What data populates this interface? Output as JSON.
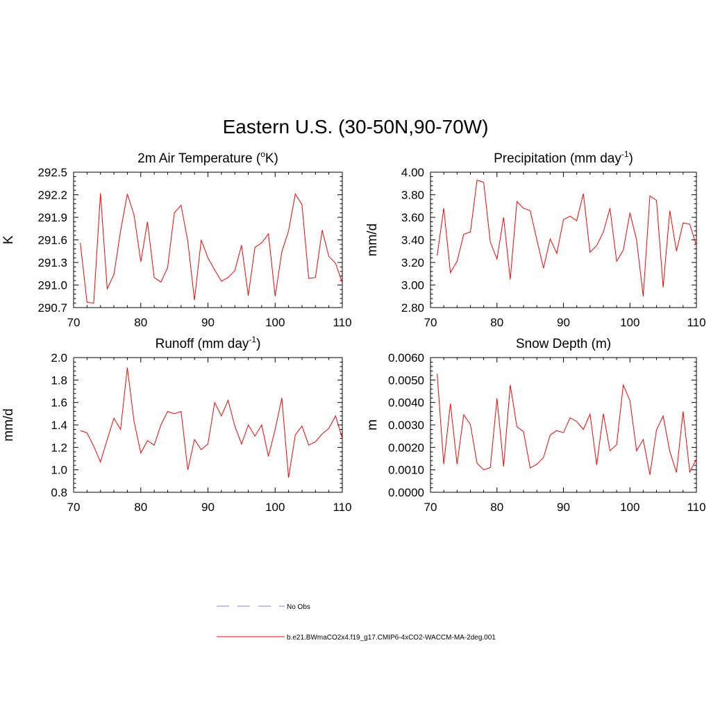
{
  "main_title": "Eastern U.S. (30-50N,90-70W)",
  "series_color": "#ff0000",
  "obs_color": "#9999dd",
  "legend": {
    "obs_label": "No Obs",
    "model_label": "b.e21.BWmaCO2x4.f19_g17.CMIP6-4xCO2-WACCM-MA-2deg.001"
  },
  "chart_data": [
    {
      "type": "line",
      "title_main": "2m Air Temperature (",
      "title_sup": "o",
      "title_tail": "K)",
      "ylabel": "K",
      "xlim": [
        70,
        110
      ],
      "ylim": [
        290.7,
        292.5
      ],
      "xticks": [
        "70",
        "80",
        "90",
        "100",
        "110"
      ],
      "xtick_values": [
        70,
        80,
        90,
        100,
        110
      ],
      "yticks": [
        "290.7",
        "291.0",
        "291.3",
        "291.6",
        "291.9",
        "292.2",
        "292.5"
      ],
      "ytick_values": [
        290.7,
        291.0,
        291.3,
        291.6,
        291.9,
        292.2,
        292.5
      ],
      "x": [
        71,
        72,
        73,
        74,
        75,
        76,
        77,
        78,
        79,
        80,
        81,
        82,
        83,
        84,
        85,
        86,
        87,
        88,
        89,
        90,
        91,
        92,
        93,
        94,
        95,
        96,
        97,
        98,
        99,
        100,
        101,
        102,
        103,
        104,
        105,
        106,
        107,
        108,
        109,
        110
      ],
      "values": [
        291.56,
        290.77,
        290.76,
        292.22,
        290.95,
        291.14,
        291.72,
        292.21,
        291.93,
        291.31,
        291.84,
        291.1,
        291.04,
        291.23,
        291.96,
        292.06,
        291.58,
        290.8,
        291.6,
        291.36,
        291.2,
        291.05,
        291.1,
        291.19,
        291.53,
        290.86,
        291.5,
        291.56,
        291.68,
        290.85,
        291.44,
        291.72,
        292.21,
        292.07,
        291.09,
        291.1,
        291.73,
        291.38,
        291.29,
        291.03
      ]
    },
    {
      "type": "line",
      "title_main": "Precipitation (mm day",
      "title_sup": "-1",
      "title_tail": ")",
      "ylabel": "mm/d",
      "xlim": [
        70,
        110
      ],
      "ylim": [
        2.8,
        4.0
      ],
      "xticks": [
        "70",
        "80",
        "90",
        "100",
        "110"
      ],
      "xtick_values": [
        70,
        80,
        90,
        100,
        110
      ],
      "yticks": [
        "2.80",
        "3.00",
        "3.20",
        "3.40",
        "3.60",
        "3.80",
        "4.00"
      ],
      "ytick_values": [
        2.8,
        3.0,
        3.2,
        3.4,
        3.6,
        3.8,
        4.0
      ],
      "x": [
        71,
        72,
        73,
        74,
        75,
        76,
        77,
        78,
        79,
        80,
        81,
        82,
        83,
        84,
        85,
        86,
        87,
        88,
        89,
        90,
        91,
        92,
        93,
        94,
        95,
        96,
        97,
        98,
        99,
        100,
        101,
        102,
        103,
        104,
        105,
        106,
        107,
        108,
        109,
        110
      ],
      "values": [
        3.26,
        3.68,
        3.11,
        3.21,
        3.45,
        3.47,
        3.93,
        3.91,
        3.38,
        3.23,
        3.6,
        3.05,
        3.74,
        3.68,
        3.66,
        3.4,
        3.15,
        3.41,
        3.28,
        3.58,
        3.61,
        3.57,
        3.81,
        3.29,
        3.35,
        3.47,
        3.68,
        3.21,
        3.31,
        3.64,
        3.4,
        2.9,
        3.79,
        3.75,
        2.98,
        3.66,
        3.3,
        3.55,
        3.54,
        3.35
      ]
    },
    {
      "type": "line",
      "title_main": "Runoff (mm day",
      "title_sup": "-1",
      "title_tail": ")",
      "ylabel": "mm/d",
      "xlim": [
        70,
        110
      ],
      "ylim": [
        0.8,
        2.0
      ],
      "xticks": [
        "70",
        "80",
        "90",
        "100",
        "110"
      ],
      "xtick_values": [
        70,
        80,
        90,
        100,
        110
      ],
      "yticks": [
        "0.8",
        "1.0",
        "1.2",
        "1.4",
        "1.6",
        "1.8",
        "2.0"
      ],
      "ytick_values": [
        0.8,
        1.0,
        1.2,
        1.4,
        1.6,
        1.8,
        2.0
      ],
      "x": [
        71,
        72,
        73,
        74,
        75,
        76,
        77,
        78,
        79,
        80,
        81,
        82,
        83,
        84,
        85,
        86,
        87,
        88,
        89,
        90,
        91,
        92,
        93,
        94,
        95,
        96,
        97,
        98,
        99,
        100,
        101,
        102,
        103,
        104,
        105,
        106,
        107,
        108,
        109,
        110
      ],
      "values": [
        1.35,
        1.33,
        1.21,
        1.07,
        1.27,
        1.46,
        1.36,
        1.91,
        1.43,
        1.15,
        1.26,
        1.22,
        1.4,
        1.52,
        1.5,
        1.52,
        1.0,
        1.27,
        1.18,
        1.23,
        1.6,
        1.48,
        1.62,
        1.39,
        1.23,
        1.4,
        1.3,
        1.4,
        1.12,
        1.36,
        1.64,
        0.93,
        1.31,
        1.39,
        1.22,
        1.25,
        1.32,
        1.37,
        1.48,
        1.28
      ]
    },
    {
      "type": "line",
      "title_main": "Snow Depth (m)",
      "title_sup": "",
      "title_tail": "",
      "ylabel": "m",
      "xlim": [
        70,
        110
      ],
      "ylim": [
        0.0,
        0.006
      ],
      "xticks": [
        "70",
        "80",
        "90",
        "100",
        "110"
      ],
      "xtick_values": [
        70,
        80,
        90,
        100,
        110
      ],
      "yticks": [
        "0.0000",
        "0.0010",
        "0.0020",
        "0.0030",
        "0.0040",
        "0.0050",
        "0.0060"
      ],
      "ytick_values": [
        0.0,
        0.001,
        0.002,
        0.003,
        0.004,
        0.005,
        0.006
      ],
      "x": [
        71,
        72,
        73,
        74,
        75,
        76,
        77,
        78,
        79,
        80,
        81,
        82,
        83,
        84,
        85,
        86,
        87,
        88,
        89,
        90,
        91,
        92,
        93,
        94,
        95,
        96,
        97,
        98,
        99,
        100,
        101,
        102,
        103,
        104,
        105,
        106,
        107,
        108,
        109,
        110
      ],
      "values": [
        0.00528,
        0.00125,
        0.00395,
        0.00125,
        0.00345,
        0.00302,
        0.0013,
        0.001,
        0.0011,
        0.00418,
        0.00115,
        0.00478,
        0.00292,
        0.0027,
        0.00108,
        0.00125,
        0.00155,
        0.00255,
        0.00275,
        0.00265,
        0.00332,
        0.00315,
        0.0028,
        0.00348,
        0.00122,
        0.0035,
        0.00185,
        0.00212,
        0.00478,
        0.00408,
        0.00185,
        0.00235,
        0.00078,
        0.00278,
        0.0034,
        0.00182,
        0.00088,
        0.0036,
        0.0009,
        0.00148
      ]
    }
  ]
}
